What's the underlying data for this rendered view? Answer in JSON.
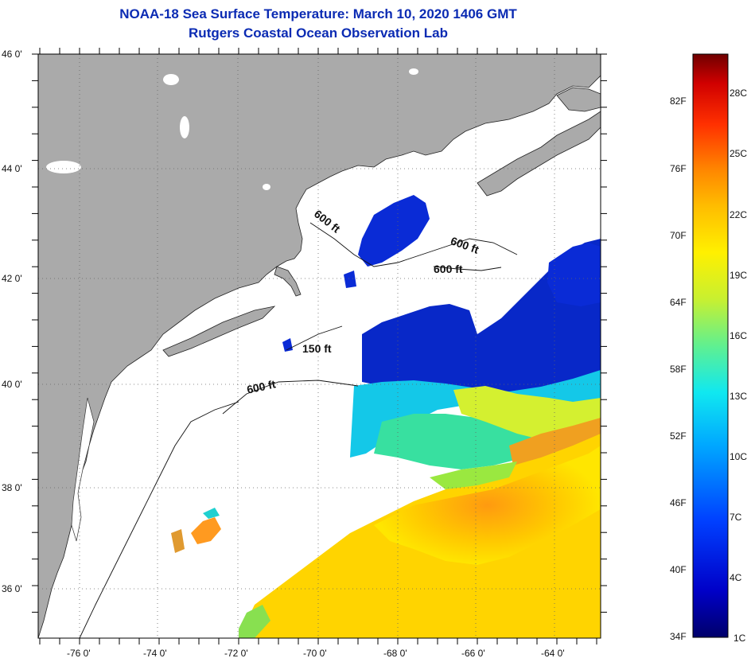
{
  "title": {
    "line1": "NOAA-18 Sea Surface Temperature:  March 10, 2020 1406 GMT",
    "line2": "Rutgers Coastal Ocean Observation Lab"
  },
  "axes": {
    "lat_labels": [
      "46 0'",
      "44 0'",
      "42 0'",
      "40 0'",
      "38 0'",
      "36 0'"
    ],
    "lon_labels": [
      "-76 0'",
      "-74 0'",
      "-72 0'",
      "-70 0'",
      "-68 0'",
      "-66 0'",
      "-64 0'"
    ]
  },
  "contours": {
    "labels": [
      "600 ft",
      "600 ft",
      "600 ft",
      "150 ft",
      "600 ft"
    ]
  },
  "colorbar": {
    "fahrenheit": [
      "82F",
      "76F",
      "70F",
      "64F",
      "58F",
      "52F",
      "46F",
      "40F",
      "34F"
    ],
    "celsius": [
      "28C",
      "25C",
      "22C",
      "19C",
      "16C",
      "13C",
      "10C",
      "7C",
      "4C",
      "1C"
    ],
    "colors": [
      "#7a0000",
      "#c80000",
      "#ff2a00",
      "#ff7a00",
      "#ffc400",
      "#f7f000",
      "#b0f040",
      "#40f0b0",
      "#00d8ff",
      "#0090ff",
      "#0030ff",
      "#0000b0",
      "#00006a"
    ]
  },
  "colors": {
    "land": "#aaaaaa",
    "ocean": "#ffffff",
    "title": "#0b2bb3"
  }
}
